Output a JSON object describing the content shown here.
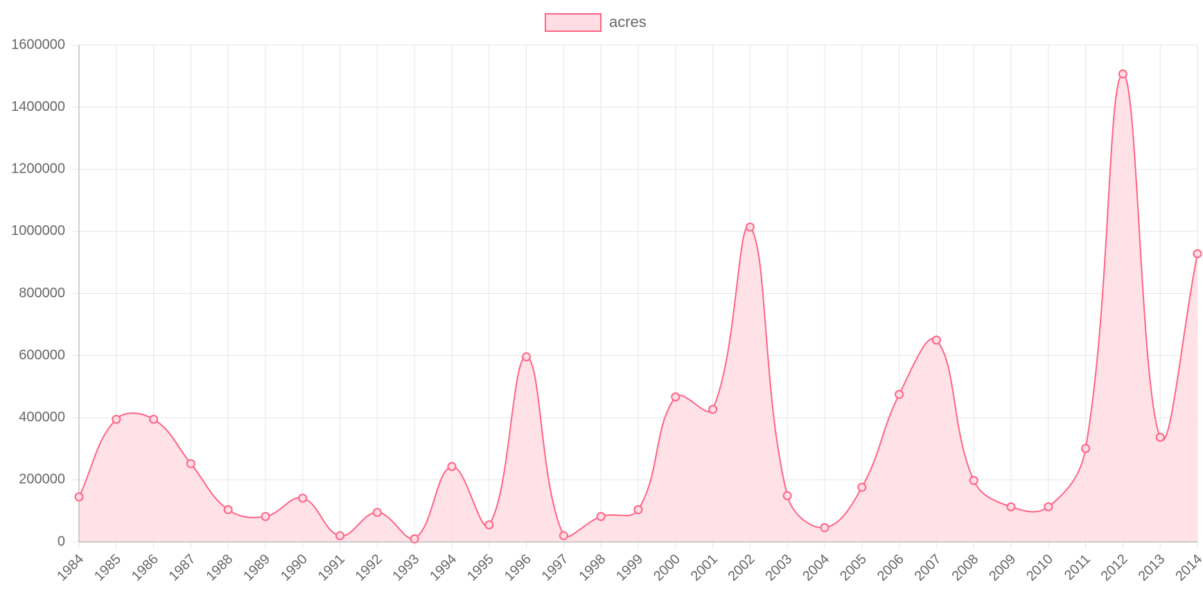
{
  "chart_data": {
    "type": "line",
    "title": "",
    "xlabel": "",
    "ylabel": "",
    "x": [
      "1984",
      "1985",
      "1986",
      "1987",
      "1988",
      "1989",
      "1990",
      "1991",
      "1992",
      "1993",
      "1994",
      "1995",
      "1996",
      "1997",
      "1998",
      "1999",
      "2000",
      "2001",
      "2002",
      "2003",
      "2004",
      "2005",
      "2006",
      "2007",
      "2008",
      "2009",
      "2010",
      "2011",
      "2012",
      "2013",
      "2014"
    ],
    "series": [
      {
        "name": "acres",
        "values": [
          145000,
          395000,
          395000,
          252000,
          104000,
          82000,
          141000,
          20000,
          95000,
          10000,
          243000,
          55000,
          596000,
          20000,
          82000,
          104000,
          467000,
          427000,
          1014000,
          149000,
          46000,
          176000,
          475000,
          650000,
          198000,
          113000,
          113000,
          301000,
          1507000,
          337000,
          928000
        ]
      }
    ],
    "ylim": [
      0,
      1600000
    ],
    "yticks": [
      0,
      200000,
      400000,
      600000,
      800000,
      1000000,
      1200000,
      1400000,
      1600000
    ],
    "grid": true,
    "legend": "top-center",
    "fill": true,
    "curve": "smooth",
    "colors": {
      "line": "#ff6384",
      "fill": "#ffdde4",
      "grid": "#e5e5e5",
      "axis": "#bdbdbd",
      "text": "#666666"
    }
  }
}
